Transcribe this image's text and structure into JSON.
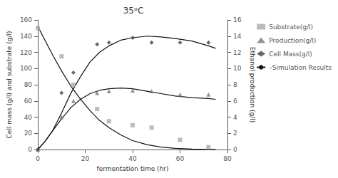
{
  "chart_data": {
    "type": "scatter",
    "title": "35ᵒC",
    "xlabel": "fermentation time (hr)",
    "ylabel": "Cell mass (g/l) and substrate (g/l)",
    "y2label": "Ethanol production (g/l)",
    "xlim": [
      0,
      80
    ],
    "xticks": [
      0,
      20,
      40,
      60,
      80
    ],
    "ylim": [
      0,
      160
    ],
    "yticks": [
      0,
      20,
      40,
      60,
      80,
      100,
      120,
      140,
      160
    ],
    "y2lim": [
      0,
      16
    ],
    "y2ticks": [
      0,
      2,
      4,
      6,
      8,
      10,
      12,
      14,
      16
    ],
    "grid": false,
    "legend": "upper right",
    "series": [
      {
        "name": "Substrate(g/l)",
        "type": "scatter",
        "color": "#aaaaaa",
        "marker": "square",
        "x": [
          0,
          10,
          15,
          25,
          30,
          40,
          48,
          60,
          72
        ],
        "values": [
          150,
          115,
          80,
          50,
          35,
          30,
          27,
          12,
          3
        ]
      },
      {
        "name": "Production(g/l)",
        "type": "scatter",
        "color": "#777777",
        "marker": "triangle",
        "axis": "y2",
        "x": [
          0,
          10,
          15,
          25,
          30,
          40,
          48,
          60,
          72
        ],
        "values": [
          0,
          4,
          6,
          7,
          7.2,
          7.3,
          7.2,
          6.8,
          6.8
        ]
      },
      {
        "name": "Cell Mass(g/l)",
        "type": "scatter",
        "color": "#444444",
        "marker": "diamond",
        "axis": "y2",
        "x": [
          0,
          10,
          15,
          25,
          30,
          40,
          48,
          60,
          72
        ],
        "values": [
          0,
          7,
          9.5,
          13,
          13.2,
          13.8,
          13.2,
          13.2,
          13.2
        ]
      },
      {
        "name": "–Simulation Results",
        "type": "line",
        "color": "#111111",
        "line_style": "solid",
        "x": [
          0,
          3,
          6,
          10,
          14,
          18,
          22,
          26,
          30,
          35,
          40,
          46,
          52,
          58,
          65,
          72,
          75
        ],
        "values": [
          152,
          135,
          118,
          97,
          78,
          62,
          48,
          36,
          27,
          18,
          11,
          6,
          3,
          1.5,
          0.5,
          0.1,
          0.05
        ]
      },
      {
        "name": "–Simulation Results",
        "type": "line",
        "color": "#111111",
        "line_style": "solid",
        "axis": "y2",
        "x": [
          0,
          3,
          6,
          10,
          14,
          18,
          22,
          26,
          30,
          35,
          40,
          46,
          52,
          58,
          65,
          72,
          75
        ],
        "values": [
          0,
          1,
          2.2,
          3.8,
          5.2,
          6.2,
          6.9,
          7.3,
          7.5,
          7.6,
          7.5,
          7.2,
          6.9,
          6.6,
          6.4,
          6.3,
          6.2
        ]
      },
      {
        "name": "–Simulation Results",
        "type": "line",
        "color": "#111111",
        "line_style": "solid",
        "axis": "y2",
        "x": [
          0,
          3,
          6,
          10,
          14,
          18,
          22,
          26,
          30,
          35,
          40,
          46,
          52,
          58,
          65,
          72,
          75
        ],
        "values": [
          0,
          1,
          2.2,
          4.5,
          7,
          9,
          10.8,
          12,
          12.8,
          13.5,
          13.8,
          14,
          13.9,
          13.7,
          13.4,
          12.8,
          12.5
        ]
      }
    ]
  }
}
